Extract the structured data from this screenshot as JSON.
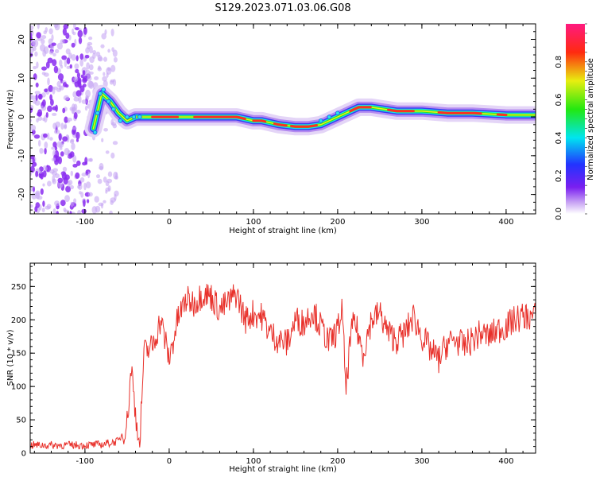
{
  "figure": {
    "title": "S129.2023.071.03.06.G08"
  },
  "chart_data": [
    {
      "type": "heatmap",
      "xlabel": "Height of straight line (km)",
      "ylabel": "Frequency (Hz)",
      "xlim": [
        -165,
        435
      ],
      "ylim": [
        -25,
        24
      ],
      "xticks": [
        -100,
        0,
        100,
        200,
        300,
        400
      ],
      "yticks": [
        -20,
        -10,
        0,
        10,
        20
      ],
      "colorbar": {
        "label": "Normalized spectral amplitude",
        "range": [
          0,
          1
        ],
        "ticks": [
          0.0,
          0.2,
          0.4,
          0.6,
          0.8
        ],
        "colormap": "rainbow (white-violet-blue-cyan-green-yellow-red-magenta)"
      },
      "ridge": {
        "x": [
          -90,
          -80,
          -70,
          -60,
          -50,
          -40,
          -20,
          0,
          20,
          50,
          80,
          100,
          110,
          130,
          150,
          165,
          180,
          195,
          210,
          225,
          240,
          270,
          300,
          330,
          360,
          400,
          435
        ],
        "y": [
          -3,
          6,
          4,
          1,
          -1,
          0,
          0,
          0,
          0,
          0,
          0,
          -1,
          -1,
          -2,
          -2.5,
          -2.5,
          -2,
          -0.5,
          1,
          2.5,
          2.5,
          1.5,
          1.5,
          1,
          1,
          0.5,
          0.5
        ]
      },
      "noise_region_km": [
        -165,
        -70
      ]
    },
    {
      "type": "line",
      "xlabel": "Height of straight line (km)",
      "ylabel": "SNR (10 * v/v)",
      "xlim": [
        -165,
        435
      ],
      "ylim": [
        0,
        285
      ],
      "xticks": [
        -100,
        0,
        100,
        200,
        300,
        400
      ],
      "yticks": [
        0,
        50,
        100,
        150,
        200,
        250
      ],
      "color": "#e8302a",
      "series": [
        {
          "x": [
            -165,
            -140,
            -120,
            -100,
            -80,
            -60,
            -50,
            -45,
            -40,
            -35,
            -30,
            -20,
            -10,
            0,
            10,
            20,
            30,
            40,
            50,
            60,
            70,
            80,
            90,
            100,
            110,
            120,
            130,
            140,
            150,
            160,
            170,
            180,
            190,
            200,
            205,
            210,
            215,
            220,
            230,
            240,
            250,
            260,
            270,
            280,
            290,
            300,
            310,
            320,
            330,
            340,
            350,
            360,
            370,
            380,
            390,
            400,
            410,
            420,
            435
          ],
          "y": [
            12,
            12,
            12,
            12,
            13,
            18,
            45,
            130,
            60,
            10,
            150,
            160,
            200,
            140,
            200,
            230,
            225,
            240,
            235,
            215,
            225,
            240,
            200,
            210,
            205,
            180,
            170,
            165,
            200,
            195,
            215,
            190,
            165,
            185,
            215,
            95,
            170,
            200,
            150,
            200,
            210,
            180,
            170,
            180,
            205,
            175,
            155,
            140,
            165,
            170,
            160,
            170,
            180,
            175,
            185,
            190,
            200,
            205,
            205
          ]
        }
      ]
    }
  ]
}
